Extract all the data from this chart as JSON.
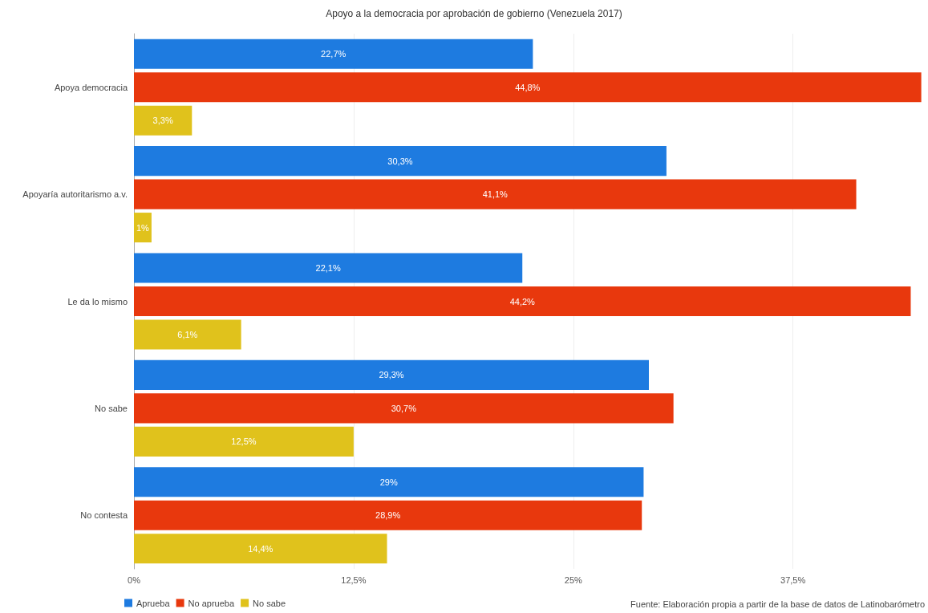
{
  "chart_data": {
    "type": "bar",
    "orientation": "horizontal",
    "title": "Apoyo a la democracia por aprobación de gobierno (Venezuela 2017)",
    "categories": [
      "Apoya democracia",
      "Apoyaría autoritarismo a.v.",
      "Le da lo mismo",
      "No sabe",
      "No contesta"
    ],
    "series": [
      {
        "name": "Aprueba",
        "color": "#1e7be0",
        "values": [
          22.7,
          30.3,
          22.1,
          29.3,
          29
        ],
        "value_labels": [
          "22,7%",
          "30,3%",
          "22,1%",
          "29,3%",
          "29%"
        ]
      },
      {
        "name": "No aprueba",
        "color": "#e8380d",
        "values": [
          44.8,
          41.1,
          44.2,
          30.7,
          28.9
        ],
        "value_labels": [
          "44,8%",
          "41,1%",
          "44,2%",
          "30,7%",
          "28,9%"
        ]
      },
      {
        "name": "No sabe",
        "color": "#e0c21c",
        "values": [
          3.3,
          1,
          6.1,
          12.5,
          14.4
        ],
        "value_labels": [
          "3,3%",
          "1%",
          "6,1%",
          "12,5%",
          "14,4%"
        ]
      }
    ],
    "xlim": [
      0,
      45
    ],
    "xticks": [
      {
        "value": 0,
        "label": "0%"
      },
      {
        "value": 12.5,
        "label": "12,5%"
      },
      {
        "value": 25,
        "label": "25%"
      },
      {
        "value": 37.5,
        "label": "37,5%"
      }
    ],
    "grid": "x",
    "legend": "bottom left",
    "annotations": [
      "Fuente: Elaboración propia a partir de la base de datos de Latinobarómetro"
    ]
  }
}
